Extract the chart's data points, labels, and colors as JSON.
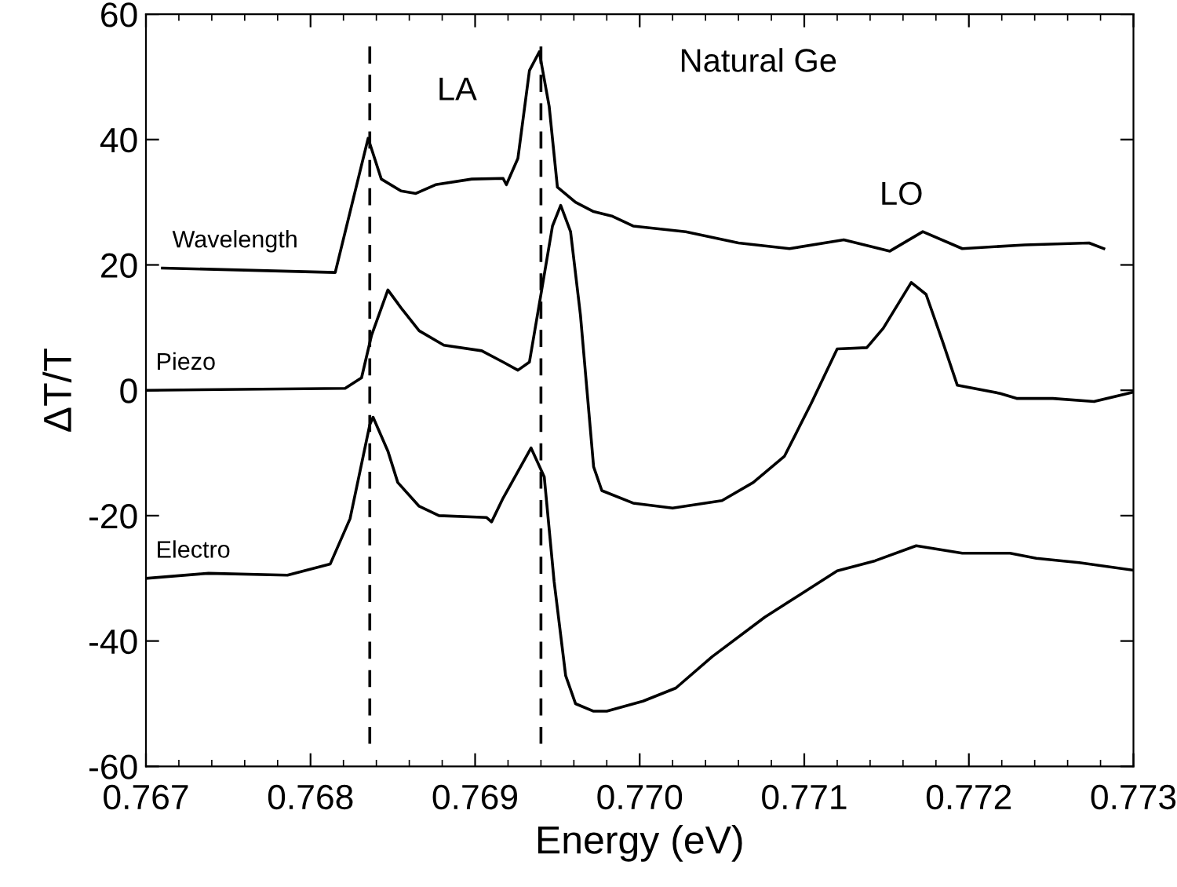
{
  "chart_data": {
    "type": "line",
    "title": "Natural Ge",
    "xlabel": "Energy (eV)",
    "ylabel": "ΔT/T",
    "xlim": [
      0.767,
      0.773
    ],
    "xticks": [
      0.767,
      0.768,
      0.769,
      {
        "value": 0.77,
        "label": "0.770"
      },
      0.771,
      0.772,
      0.773
    ],
    "ylim": [
      -60,
      60
    ],
    "yticks": [
      -60,
      -40,
      -20,
      0,
      20,
      40,
      60
    ],
    "grid": false,
    "legend": false,
    "marker": "none",
    "line_style": "solid",
    "annotations": [
      "LA",
      "LO"
    ],
    "ref_lines": [
      {
        "axis": "x",
        "value": 0.76836,
        "color": "#000000",
        "line_style": "dashed"
      },
      {
        "axis": "x",
        "value": 0.7694,
        "color": "#000000",
        "line_style": "dashed"
      }
    ],
    "series": [
      {
        "name": "Wavelength",
        "color": "#000000",
        "x": [
          0.7671,
          0.76815,
          0.76835,
          0.76843,
          0.76855,
          0.76864,
          0.76876,
          0.76898,
          0.76917,
          0.76919,
          0.76926,
          0.76933,
          0.76939,
          0.76945,
          0.7695,
          0.76961,
          0.76972,
          0.76983,
          0.76996,
          0.77028,
          0.7706,
          0.77091,
          0.77124,
          0.77152,
          0.77172,
          0.77196,
          0.77234,
          0.77273,
          0.77282
        ],
        "values": [
          19.5,
          18.8,
          40.2,
          33.7,
          31.8,
          31.4,
          32.8,
          33.7,
          33.8,
          32.8,
          37,
          51,
          54,
          45.3,
          32.4,
          30,
          28.5,
          27.8,
          26.2,
          25.3,
          23.5,
          22.6,
          24,
          22.2,
          25.3,
          22.6,
          23.2,
          23.5,
          22.6
        ]
      },
      {
        "name": "Piezo",
        "color": "#000000",
        "x": [
          0.767,
          0.76821,
          0.76831,
          0.76837,
          0.76847,
          0.76856,
          0.76866,
          0.76881,
          0.76904,
          0.76917,
          0.76926,
          0.76933,
          0.7694,
          0.76947,
          0.76952,
          0.76958,
          0.76964,
          0.76972,
          0.76977,
          0.76996,
          0.7702,
          0.7705,
          0.77069,
          0.77088,
          0.77104,
          0.7712,
          0.77138,
          0.77148,
          0.77165,
          0.77174,
          0.77184,
          0.77193,
          0.77219,
          0.77229,
          0.77251,
          0.77276,
          0.773
        ],
        "values": [
          0,
          0.3,
          2,
          8.7,
          16,
          12.8,
          9.5,
          7.2,
          6.3,
          4.5,
          3.2,
          4.5,
          15.3,
          26.2,
          29.5,
          25.3,
          12,
          -12.2,
          -16,
          -18,
          -18.8,
          -17.6,
          -14.7,
          -10.5,
          -2.2,
          6.6,
          6.8,
          9.9,
          17.2,
          15.3,
          7.8,
          0.8,
          -0.5,
          -1.3,
          -1.3,
          -1.8,
          -0.3
        ]
      },
      {
        "name": "Electro",
        "color": "#000000",
        "x": [
          0.767,
          0.76738,
          0.76786,
          0.76812,
          0.76824,
          0.76836,
          0.76838,
          0.76847,
          0.76853,
          0.76866,
          0.76878,
          0.76907,
          0.7691,
          0.76917,
          0.76934,
          0.76942,
          0.76948,
          0.76955,
          0.76961,
          0.76972,
          0.7698,
          0.77002,
          0.77022,
          0.77044,
          0.77076,
          0.7712,
          0.77143,
          0.77168,
          0.77196,
          0.77225,
          0.77241,
          0.77267,
          0.773
        ],
        "values": [
          -30,
          -29.2,
          -29.5,
          -27.7,
          -20.5,
          -5.5,
          -4.3,
          -9.7,
          -14.7,
          -18.5,
          -20,
          -20.3,
          -21,
          -17.2,
          -9.2,
          -13.8,
          -30.5,
          -45.5,
          -50,
          -51.2,
          -51.2,
          -49.6,
          -47.5,
          -42.5,
          -36.2,
          -28.8,
          -27.2,
          -24.8,
          -26,
          -26,
          -26.8,
          -27.5,
          -28.7
        ]
      }
    ]
  }
}
